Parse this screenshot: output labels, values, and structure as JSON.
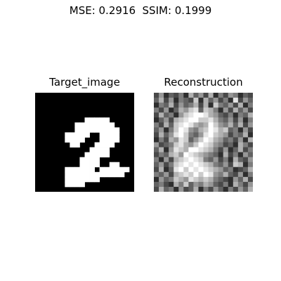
{
  "figure": {
    "suptitle": "MSE: 0.2916  SSIM: 0.1999"
  },
  "chart_data": [
    {
      "type": "heatmap",
      "title": "Target_image",
      "colormap": "gray",
      "grid": false,
      "axes": "off",
      "mask": [
        "....................",
        "....................",
        "....................",
        "....................",
        "....................",
        "..........#####.....",
        "........########....",
        "........#########...",
        "......#####..####...",
        "......####...####...",
        ".......##...####....",
        "...........####.....",
        "..........#####.....",
        ".........####.......",
        ".........####..##...",
        "......######.######.",
        "......############..",
        "......#######.......",
        "......####..........",
        "...................."
      ]
    },
    {
      "type": "heatmap",
      "title": "Reconstruction",
      "colormap": "gray",
      "grid": false,
      "axes": "off",
      "description_values_0_9": [
        "25132416352614254132",
        "36251432716352418253",
        "14362534626174352614",
        "42513657837641526352",
        "26341578998653241436",
        "13526789977864352514",
        "42637898656975463625",
        "35147985467986734152",
        "26358974358976524361",
        "14265873579865342516",
        "52347865798754231642",
        "36158769987642513624",
        "24367598765431624153",
        "41526789874352416325",
        "35247898987643527614",
        "26138979898765341236",
        "43526787979854632514",
        "15347658767643215362",
        "34216473546532416425",
        "26341523614253142536"
      ]
    }
  ]
}
